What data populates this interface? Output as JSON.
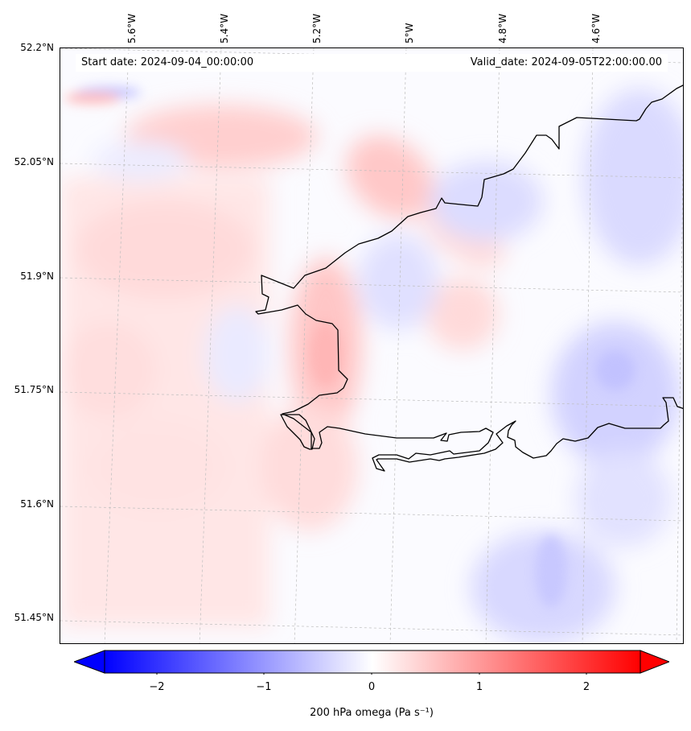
{
  "map": {
    "start_date": "Start date: 2024-09-04_00:00:00",
    "valid_date": "Valid_date: 2024-09-05T22:00:00.00",
    "lon_labels": [
      "5.6°W",
      "5.4°W",
      "5.2°W",
      "5°W",
      "4.8°W",
      "4.6°W"
    ],
    "lat_labels": [
      "52.2°N",
      "52.05°N",
      "51.9°N",
      "51.75°N",
      "51.6°N",
      "51.45°N"
    ],
    "coastline_color": "#000000",
    "gridline_style": "dashed-grey"
  },
  "colorbar": {
    "label": "200 hPa omega (Pa s⁻¹)",
    "ticks": [
      "−2",
      "−1",
      "0",
      "1",
      "2"
    ],
    "range": [
      -2.5,
      2.5
    ],
    "colormap": "bwr",
    "extend": "both",
    "low_color": "#0000ff",
    "mid_color": "#ffffff",
    "high_color": "#ff0000"
  }
}
